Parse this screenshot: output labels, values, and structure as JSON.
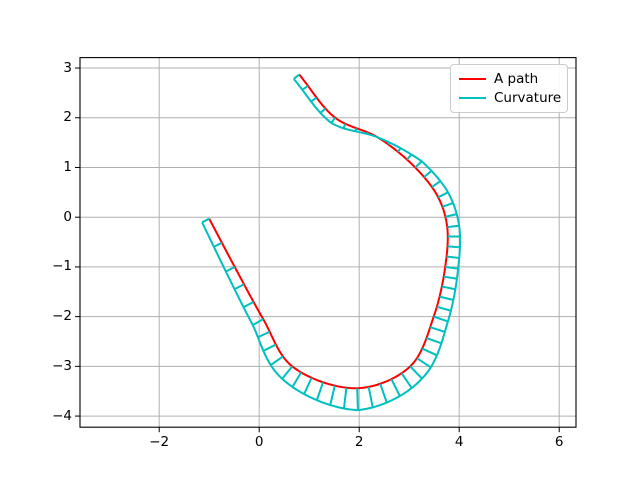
{
  "chart_data": {
    "type": "line",
    "title": "",
    "xlabel": "",
    "ylabel": "",
    "xlim": [
      -3.584,
      6.336
    ],
    "ylim": [
      -4.224,
      3.21
    ],
    "x_ticks": [
      -2,
      0,
      2,
      4,
      6
    ],
    "y_ticks": [
      -4,
      -3,
      -2,
      -1,
      0,
      1,
      2,
      3
    ],
    "grid": true,
    "grid_color": "#b0b0b0",
    "spine_color": "#000000",
    "legend": {
      "position": "upper right",
      "items": [
        {
          "label": "A path",
          "color": "#ff0000"
        },
        {
          "label": "Curvature",
          "color": "#00bfbf"
        }
      ]
    },
    "series": [
      {
        "name": "A path",
        "color": "#ff0000",
        "line_width": 2,
        "waypoints": [
          [
            0.8,
            2.87
          ],
          [
            1.52,
            2.0
          ],
          [
            2.38,
            1.6
          ],
          [
            3.12,
            1.0
          ],
          [
            3.58,
            0.4
          ],
          [
            3.76,
            -0.2
          ],
          [
            3.72,
            -1.0
          ],
          [
            3.49,
            -2.0
          ],
          [
            3.02,
            -3.0
          ],
          [
            1.96,
            -3.44
          ],
          [
            0.66,
            -3.0
          ],
          [
            0.08,
            -2.05
          ],
          [
            -0.49,
            -1.0
          ],
          [
            -1.0,
            -0.03
          ]
        ]
      },
      {
        "name": "Curvature",
        "color": "#00bfbf",
        "line_width": 2,
        "comb_tooth_length_at_waypoint": [
          0.14,
          0.13,
          0.0,
          -0.18,
          -0.22,
          -0.24,
          -0.26,
          -0.3,
          -0.34,
          -0.44,
          -0.32,
          -0.24,
          -0.2,
          -0.16
        ],
        "teeth_per_segment": [
          4,
          4,
          4,
          3,
          3,
          4,
          5,
          5,
          5,
          6,
          4,
          3,
          2
        ]
      }
    ]
  }
}
